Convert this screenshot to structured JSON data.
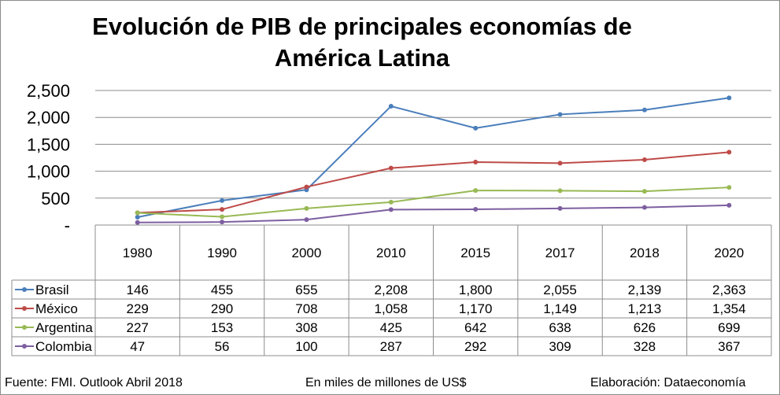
{
  "chart_data": {
    "type": "line",
    "title_line1": "Evolución de PIB de principales economías de",
    "title_line2": "América Latina",
    "categories": [
      "1980",
      "1990",
      "2000",
      "2010",
      "2015",
      "2017",
      "2018",
      "2020"
    ],
    "y_ticks": [
      "2,500",
      "2,000",
      "1,500",
      "1,000",
      "500",
      "-"
    ],
    "ylim": [
      0,
      2500
    ],
    "grid": true,
    "legend": "data-table",
    "series": [
      {
        "name": "Brasil",
        "color": "#4a7ebb",
        "values": [
          146,
          455,
          655,
          2208,
          1800,
          2055,
          2139,
          2363
        ],
        "labels": [
          "146",
          "455",
          "655",
          "2,208",
          "1,800",
          "2,055",
          "2,139",
          "2,363"
        ]
      },
      {
        "name": "México",
        "color": "#be4b48",
        "values": [
          229,
          290,
          708,
          1058,
          1170,
          1149,
          1213,
          1354
        ],
        "labels": [
          "229",
          "290",
          "708",
          "1,058",
          "1,170",
          "1,149",
          "1,213",
          "1,354"
        ]
      },
      {
        "name": "Argentina",
        "color": "#98b954",
        "values": [
          227,
          153,
          308,
          425,
          642,
          638,
          626,
          699
        ],
        "labels": [
          "227",
          "153",
          "308",
          "425",
          "642",
          "638",
          "626",
          "699"
        ]
      },
      {
        "name": "Colombia",
        "color": "#7d5fa0",
        "values": [
          47,
          56,
          100,
          287,
          292,
          309,
          328,
          367
        ],
        "labels": [
          "47",
          "56",
          "100",
          "287",
          "292",
          "309",
          "328",
          "367"
        ]
      }
    ]
  },
  "footer": {
    "source": "Fuente: FMI. Outlook Abril 2018",
    "units": "En miles de millones de US$",
    "credit": "Elaboración: Dataeconomía"
  }
}
